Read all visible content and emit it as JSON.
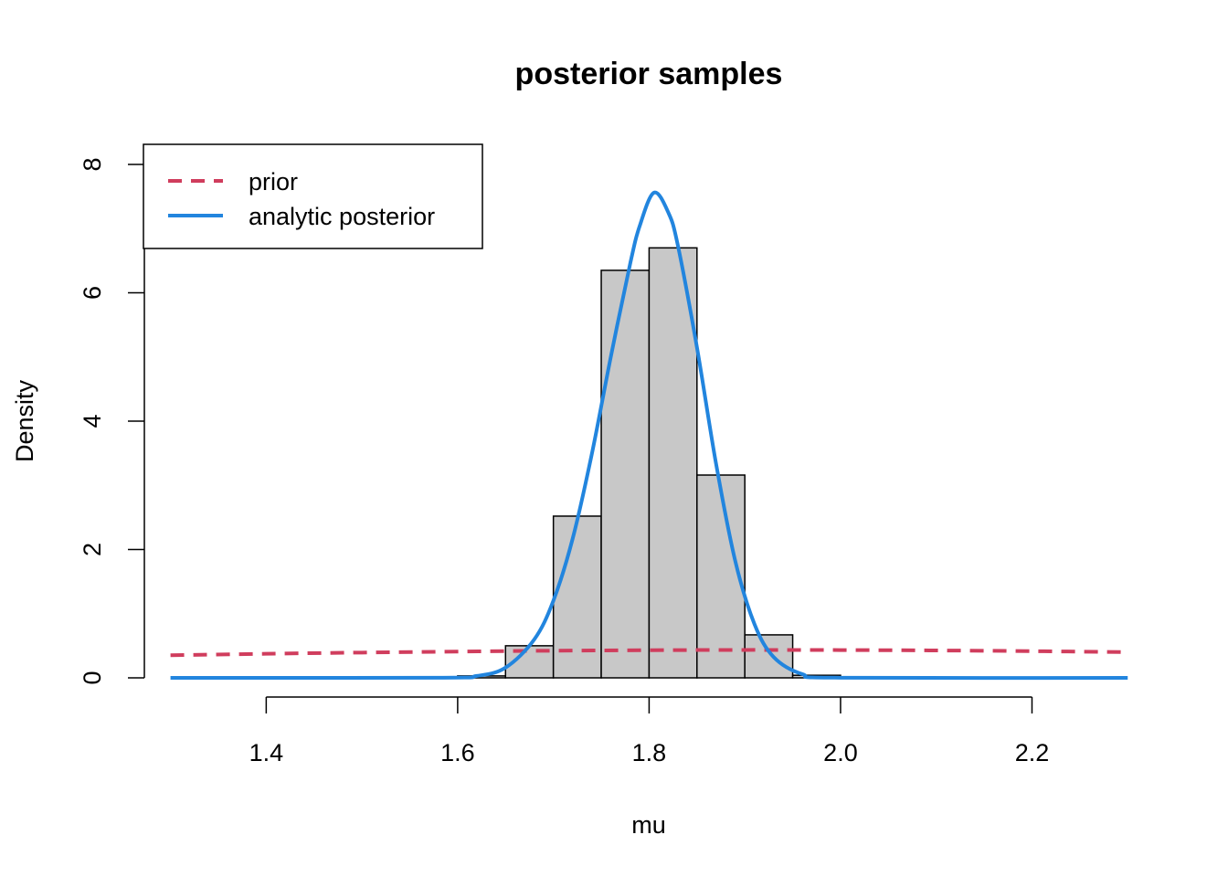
{
  "chart_data": {
    "type": "histogram",
    "title": "posterior samples",
    "xlabel": "mu",
    "ylabel": "Density",
    "xlim": [
      1.2727,
      2.3265
    ],
    "ylim": [
      0,
      8.3
    ],
    "x_ticks": [
      1.4,
      1.6,
      1.8,
      2.0,
      2.2
    ],
    "x_tick_labels": [
      "1.4",
      "1.6",
      "1.8",
      "2.0",
      "2.2"
    ],
    "y_ticks": [
      0,
      2,
      4,
      6,
      8
    ],
    "y_tick_labels": [
      "0",
      "2",
      "4",
      "6",
      "8"
    ],
    "grid": false,
    "histogram": {
      "bin_edges": [
        1.6,
        1.65,
        1.7,
        1.75,
        1.8,
        1.85,
        1.9,
        1.95,
        2.0
      ],
      "density": [
        0.03,
        0.5,
        2.52,
        6.35,
        6.7,
        3.16,
        0.67,
        0.04
      ],
      "fill": "#c8c8c8",
      "stroke": "#000000"
    },
    "series": [
      {
        "name": "prior",
        "type": "line",
        "style": "dashed",
        "color": "#d03d5d",
        "x": [
          1.3,
          1.4,
          1.5,
          1.6,
          1.7,
          1.8,
          1.9,
          2.0,
          2.1,
          2.2,
          2.3
        ],
        "y": [
          0.352,
          0.375,
          0.394,
          0.41,
          0.423,
          0.431,
          0.435,
          0.433,
          0.427,
          0.416,
          0.401
        ]
      },
      {
        "name": "analytic posterior",
        "type": "line",
        "style": "solid",
        "color": "#2285de",
        "x": [
          1.3,
          1.58,
          1.62,
          1.65,
          1.68,
          1.7,
          1.72,
          1.74,
          1.76,
          1.78,
          1.79,
          1.805,
          1.82,
          1.83,
          1.85,
          1.87,
          1.89,
          1.91,
          1.93,
          1.96,
          2.0,
          2.3
        ],
        "y": [
          0,
          0.002,
          0.03,
          0.159,
          0.598,
          1.202,
          2.161,
          3.476,
          5.002,
          6.438,
          7.033,
          7.56,
          7.253,
          6.742,
          5.148,
          3.332,
          1.821,
          0.84,
          0.326,
          0.059,
          0.002,
          0
        ]
      }
    ],
    "legend": {
      "position": "top-left",
      "entries": [
        "prior",
        "analytic posterior"
      ]
    }
  }
}
